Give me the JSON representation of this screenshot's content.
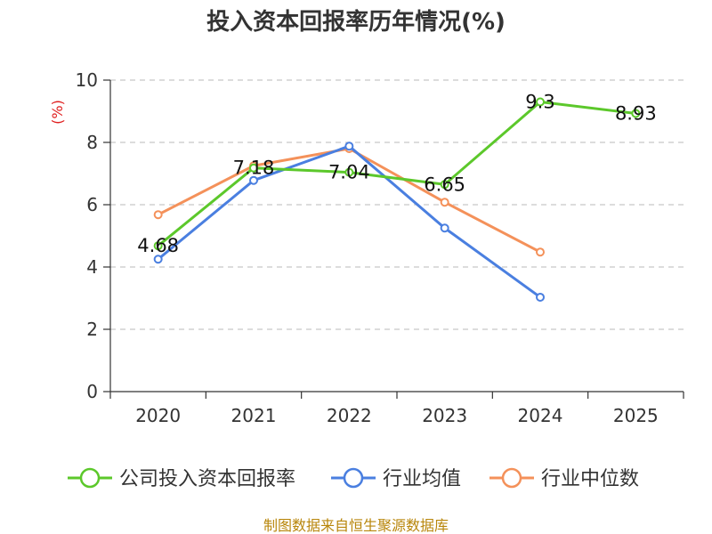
{
  "chart_data": {
    "type": "line",
    "title": "投入资本回报率历年情况(%)",
    "ylabel": "(%)",
    "xlabel": "",
    "categories": [
      "2020",
      "2021",
      "2022",
      "2023",
      "2024",
      "2025"
    ],
    "ylim": [
      0,
      10
    ],
    "yticks": [
      0,
      2,
      4,
      6,
      8,
      10
    ],
    "grid": true,
    "legend_position": "bottom",
    "series": [
      {
        "name": "公司投入资本回报率",
        "color": "#5cc82b",
        "values": [
          4.68,
          7.18,
          7.04,
          6.65,
          9.3,
          8.93
        ],
        "labels": [
          "4.68",
          "7.18",
          "7.04",
          "6.65",
          "9.3",
          "8.93"
        ]
      },
      {
        "name": "行业均值",
        "color": "#4a7fe0",
        "values": [
          4.25,
          6.78,
          7.88,
          5.25,
          3.03,
          null
        ]
      },
      {
        "name": "行业中位数",
        "color": "#f4915a",
        "values": [
          5.68,
          7.25,
          7.8,
          6.08,
          4.48,
          null
        ]
      }
    ]
  },
  "footer": {
    "source": "制图数据来自恒生聚源数据库"
  }
}
